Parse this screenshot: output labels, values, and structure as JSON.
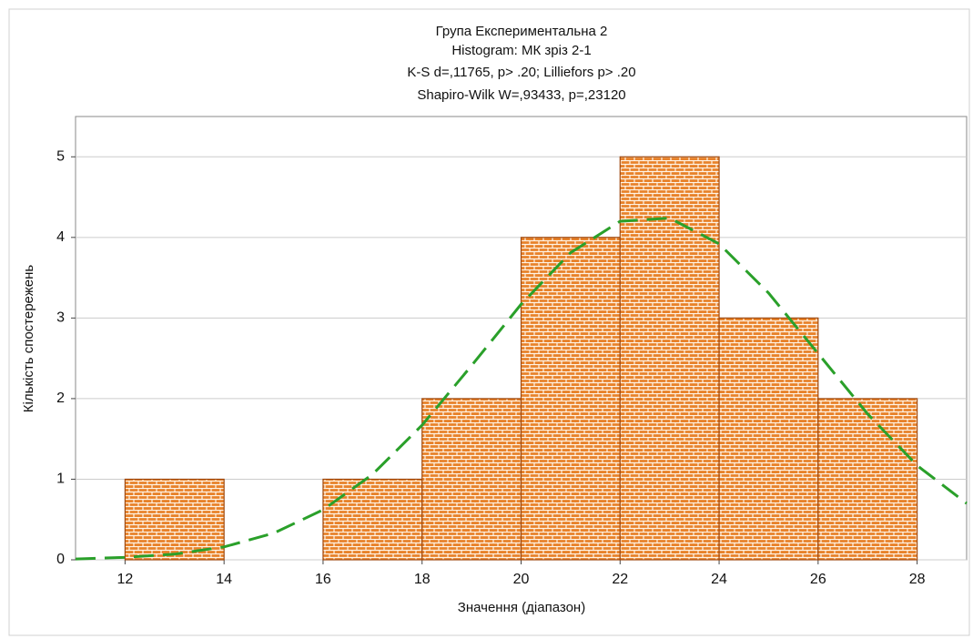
{
  "chart_data": {
    "type": "histogram",
    "title": [
      "Група Експериментальна 2",
      "Histogram: МК зріз 2-1",
      "K-S d=,11765, p> .20; Lilliefors p> .20",
      "Shapiro-Wilk W=,93433, p=,23120"
    ],
    "x_label": "Значення (діапазон)",
    "y_label": "Кількість спостережень",
    "bins": [
      12,
      14,
      16,
      18,
      20,
      22,
      24,
      26,
      28
    ],
    "values": [
      1,
      0,
      1,
      2,
      4,
      5,
      3,
      2
    ],
    "color": "#e8822a",
    "xlim": [
      11,
      29
    ],
    "ylim": [
      0,
      5.5
    ],
    "xticks": [
      12,
      14,
      16,
      18,
      20,
      22,
      24,
      26,
      28
    ],
    "yticks": [
      0,
      1,
      2,
      3,
      4,
      5
    ],
    "grid": true,
    "curve": {
      "color": "#2aa02a",
      "x": [
        11,
        12,
        13,
        14,
        15,
        16,
        17,
        18,
        19,
        20,
        21,
        22,
        23,
        24,
        25,
        26,
        27,
        28,
        29
      ],
      "y": [
        0.01,
        0.03,
        0.07,
        0.16,
        0.33,
        0.62,
        1.06,
        1.67,
        2.41,
        3.17,
        3.81,
        4.2,
        4.24,
        3.92,
        3.31,
        2.56,
        1.81,
        1.17,
        0.7
      ]
    }
  }
}
